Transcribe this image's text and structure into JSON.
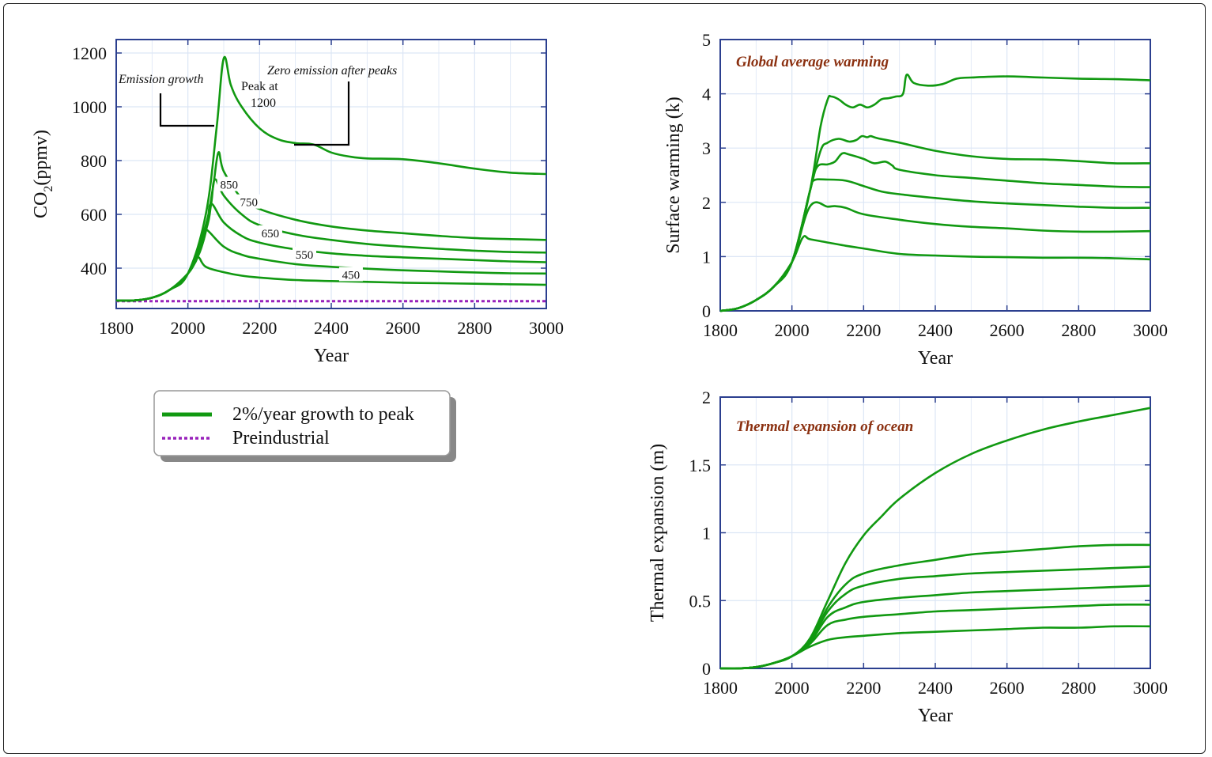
{
  "colors": {
    "series": "#119911",
    "preindustrial": "#9922bb",
    "frame": "#2b3f8f",
    "grid": "#dce6f5",
    "title_text": "#8b3010"
  },
  "legend": {
    "items": [
      {
        "label": "2%/year growth to peak",
        "style": "solid",
        "color": "#119911"
      },
      {
        "label": "Preindustrial",
        "style": "dotted",
        "color": "#9922bb"
      }
    ]
  },
  "chart_data": [
    {
      "type": "line",
      "title": "",
      "xlabel": "Year",
      "ylabel": "CO2(ppmv)",
      "ylabel_main": "CO",
      "ylabel_sub": "2",
      "ylabel_tail": "(ppmv)",
      "xlim": [
        1800,
        3000
      ],
      "ylim": [
        250,
        1250
      ],
      "xticks": [
        1800,
        2000,
        2200,
        2400,
        2600,
        2800,
        3000
      ],
      "yticks": [
        400,
        600,
        800,
        1000,
        1200
      ],
      "grid": true,
      "annotations": {
        "emission_growth": "Emission growth",
        "peak_at": "Peak at",
        "peak_value": "1200",
        "zero_emission": "Zero emission after peaks"
      },
      "series": [
        {
          "label": "1200",
          "x": [
            1800,
            1850,
            1900,
            1950,
            2000,
            2050,
            2080,
            2100,
            2120,
            2150,
            2200,
            2250,
            2300,
            2350,
            2400,
            2450,
            2500,
            2600,
            2700,
            2800,
            2900,
            3000
          ],
          "y": [
            280,
            280,
            290,
            320,
            380,
            600,
            920,
            1180,
            1080,
            1000,
            920,
            880,
            865,
            860,
            830,
            815,
            808,
            805,
            790,
            770,
            755,
            750
          ]
        },
        {
          "label": "850",
          "x": [
            1800,
            1850,
            1900,
            1950,
            2000,
            2050,
            2070,
            2085,
            2100,
            2150,
            2200,
            2300,
            2400,
            2500,
            2600,
            2700,
            2800,
            2900,
            3000
          ],
          "y": [
            280,
            280,
            290,
            320,
            380,
            560,
            700,
            830,
            760,
            660,
            620,
            580,
            555,
            540,
            530,
            520,
            512,
            508,
            505
          ]
        },
        {
          "label": "750",
          "x": [
            1800,
            1850,
            1900,
            1950,
            2000,
            2050,
            2065,
            2075,
            2100,
            2150,
            2200,
            2300,
            2400,
            2500,
            2600,
            2700,
            2800,
            2900,
            3000
          ],
          "y": [
            280,
            280,
            290,
            320,
            380,
            540,
            640,
            730,
            670,
            600,
            560,
            525,
            505,
            490,
            480,
            472,
            465,
            460,
            458
          ]
        },
        {
          "label": "650",
          "x": [
            1800,
            1850,
            1900,
            1950,
            2000,
            2040,
            2055,
            2065,
            2100,
            2150,
            2200,
            2300,
            2400,
            2500,
            2600,
            2700,
            2800,
            2900,
            3000
          ],
          "y": [
            280,
            280,
            290,
            320,
            380,
            490,
            570,
            640,
            570,
            520,
            495,
            470,
            455,
            446,
            440,
            435,
            430,
            425,
            422
          ]
        },
        {
          "label": "550",
          "x": [
            1800,
            1850,
            1900,
            1950,
            2000,
            2030,
            2045,
            2050,
            2100,
            2150,
            2200,
            2300,
            2400,
            2500,
            2600,
            2700,
            2800,
            2900,
            3000
          ],
          "y": [
            280,
            280,
            290,
            320,
            380,
            450,
            510,
            545,
            480,
            450,
            435,
            415,
            405,
            398,
            392,
            388,
            384,
            381,
            380
          ]
        },
        {
          "label": "450",
          "x": [
            1800,
            1850,
            1900,
            1950,
            2000,
            2020,
            2030,
            2050,
            2100,
            2150,
            2200,
            2300,
            2400,
            2500,
            2600,
            2700,
            2800,
            2900,
            3000
          ],
          "y": [
            280,
            280,
            290,
            320,
            380,
            420,
            440,
            405,
            385,
            372,
            365,
            356,
            352,
            349,
            346,
            344,
            342,
            340,
            338
          ]
        }
      ],
      "baseline": {
        "label": "Preindustrial",
        "y": 280
      }
    },
    {
      "type": "line",
      "title": "Global average warming",
      "xlabel": "Year",
      "ylabel": "Surface warming (k)",
      "xlim": [
        1800,
        3000
      ],
      "ylim": [
        0,
        5
      ],
      "xticks": [
        1800,
        2000,
        2200,
        2400,
        2600,
        2800,
        3000
      ],
      "yticks": [
        0,
        1,
        2,
        3,
        4,
        5
      ],
      "grid": true,
      "series": [
        {
          "x": [
            1800,
            1850,
            1900,
            1950,
            2000,
            2050,
            2080,
            2100,
            2110,
            2130,
            2150,
            2170,
            2190,
            2210,
            2230,
            2250,
            2270,
            2290,
            2310,
            2320,
            2340,
            2380,
            2420,
            2460,
            2500,
            2600,
            2700,
            2800,
            2900,
            3000
          ],
          "y": [
            0,
            0.05,
            0.2,
            0.45,
            0.9,
            2.2,
            3.4,
            3.9,
            3.95,
            3.9,
            3.8,
            3.75,
            3.8,
            3.75,
            3.8,
            3.9,
            3.92,
            3.95,
            4.0,
            4.35,
            4.2,
            4.15,
            4.18,
            4.28,
            4.3,
            4.32,
            4.3,
            4.28,
            4.27,
            4.25
          ]
        },
        {
          "x": [
            1800,
            1850,
            1900,
            1950,
            2000,
            2050,
            2080,
            2100,
            2130,
            2160,
            2180,
            2195,
            2210,
            2220,
            2240,
            2300,
            2400,
            2500,
            2600,
            2700,
            2800,
            2900,
            3000
          ],
          "y": [
            0,
            0.05,
            0.2,
            0.45,
            0.9,
            2.2,
            2.95,
            3.1,
            3.17,
            3.12,
            3.15,
            3.22,
            3.2,
            3.22,
            3.18,
            3.1,
            2.95,
            2.85,
            2.8,
            2.79,
            2.76,
            2.72,
            2.72
          ]
        },
        {
          "x": [
            1800,
            1850,
            1900,
            1950,
            2000,
            2050,
            2070,
            2100,
            2120,
            2140,
            2160,
            2200,
            2230,
            2260,
            2280,
            2300,
            2400,
            2500,
            2600,
            2700,
            2800,
            2900,
            3000
          ],
          "y": [
            0,
            0.05,
            0.2,
            0.45,
            0.9,
            2.2,
            2.65,
            2.7,
            2.75,
            2.9,
            2.88,
            2.8,
            2.72,
            2.75,
            2.68,
            2.6,
            2.5,
            2.45,
            2.4,
            2.35,
            2.32,
            2.29,
            2.28
          ]
        },
        {
          "x": [
            1800,
            1850,
            1900,
            1950,
            2000,
            2050,
            2060,
            2100,
            2150,
            2200,
            2250,
            2300,
            2400,
            2500,
            2600,
            2700,
            2800,
            2900,
            3000
          ],
          "y": [
            0,
            0.05,
            0.2,
            0.45,
            0.9,
            2.2,
            2.4,
            2.42,
            2.4,
            2.3,
            2.2,
            2.15,
            2.08,
            2.02,
            1.98,
            1.95,
            1.92,
            1.9,
            1.9
          ]
        },
        {
          "x": [
            1800,
            1850,
            1900,
            1950,
            2000,
            2050,
            2100,
            2120,
            2150,
            2200,
            2300,
            2400,
            2500,
            2600,
            2700,
            2800,
            2900,
            3000
          ],
          "y": [
            0,
            0.05,
            0.2,
            0.45,
            0.9,
            1.92,
            1.92,
            1.93,
            1.9,
            1.78,
            1.68,
            1.6,
            1.55,
            1.52,
            1.48,
            1.46,
            1.46,
            1.47
          ]
        },
        {
          "x": [
            1800,
            1850,
            1900,
            1950,
            2000,
            2030,
            2050,
            2100,
            2150,
            2200,
            2300,
            2400,
            2500,
            2600,
            2700,
            2800,
            2900,
            3000
          ],
          "y": [
            0,
            0.05,
            0.2,
            0.45,
            0.9,
            1.35,
            1.32,
            1.26,
            1.2,
            1.15,
            1.05,
            1.02,
            1.0,
            0.99,
            0.98,
            0.98,
            0.97,
            0.95
          ]
        }
      ]
    },
    {
      "type": "line",
      "title": "Thermal expansion of ocean",
      "xlabel": "Year",
      "ylabel": "Thermal expansion (m)",
      "xlim": [
        1800,
        3000
      ],
      "ylim": [
        0,
        2
      ],
      "xticks": [
        1800,
        2000,
        2200,
        2400,
        2600,
        2800,
        3000
      ],
      "yticks": [
        0,
        0.5,
        1,
        1.5,
        2
      ],
      "ytick_labels": [
        "0",
        "0.5",
        "1",
        "1.5",
        "2"
      ],
      "grid": true,
      "series": [
        {
          "x": [
            1800,
            1850,
            1900,
            1950,
            2000,
            2050,
            2100,
            2150,
            2200,
            2250,
            2300,
            2400,
            2500,
            2600,
            2700,
            2800,
            2900,
            3000
          ],
          "y": [
            0,
            0,
            0.01,
            0.04,
            0.09,
            0.22,
            0.5,
            0.78,
            0.98,
            1.12,
            1.25,
            1.44,
            1.58,
            1.68,
            1.76,
            1.82,
            1.87,
            1.92
          ]
        },
        {
          "x": [
            1800,
            1850,
            1900,
            1950,
            2000,
            2050,
            2100,
            2150,
            2200,
            2300,
            2400,
            2500,
            2600,
            2700,
            2800,
            2900,
            3000
          ],
          "y": [
            0,
            0,
            0.01,
            0.04,
            0.09,
            0.2,
            0.45,
            0.62,
            0.7,
            0.76,
            0.8,
            0.84,
            0.86,
            0.88,
            0.9,
            0.91,
            0.91
          ]
        },
        {
          "x": [
            1800,
            1850,
            1900,
            1950,
            2000,
            2050,
            2100,
            2150,
            2200,
            2300,
            2400,
            2500,
            2600,
            2700,
            2800,
            2900,
            3000
          ],
          "y": [
            0,
            0,
            0.01,
            0.04,
            0.09,
            0.2,
            0.42,
            0.55,
            0.61,
            0.66,
            0.68,
            0.7,
            0.71,
            0.72,
            0.73,
            0.74,
            0.75
          ]
        },
        {
          "x": [
            1800,
            1850,
            1900,
            1950,
            2000,
            2050,
            2100,
            2150,
            2200,
            2300,
            2400,
            2500,
            2600,
            2700,
            2800,
            2900,
            3000
          ],
          "y": [
            0,
            0,
            0.01,
            0.04,
            0.09,
            0.19,
            0.38,
            0.45,
            0.49,
            0.52,
            0.54,
            0.56,
            0.57,
            0.58,
            0.59,
            0.6,
            0.61
          ]
        },
        {
          "x": [
            1800,
            1850,
            1900,
            1950,
            2000,
            2050,
            2100,
            2150,
            2200,
            2300,
            2400,
            2500,
            2600,
            2700,
            2800,
            2900,
            3000
          ],
          "y": [
            0,
            0,
            0.01,
            0.04,
            0.09,
            0.18,
            0.32,
            0.36,
            0.38,
            0.4,
            0.42,
            0.43,
            0.44,
            0.45,
            0.46,
            0.47,
            0.47
          ]
        },
        {
          "x": [
            1800,
            1850,
            1900,
            1950,
            2000,
            2050,
            2100,
            2150,
            2200,
            2300,
            2400,
            2500,
            2600,
            2700,
            2800,
            2900,
            3000
          ],
          "y": [
            0,
            0,
            0.01,
            0.04,
            0.09,
            0.16,
            0.21,
            0.23,
            0.24,
            0.26,
            0.27,
            0.28,
            0.29,
            0.3,
            0.3,
            0.31,
            0.31
          ]
        }
      ]
    }
  ]
}
